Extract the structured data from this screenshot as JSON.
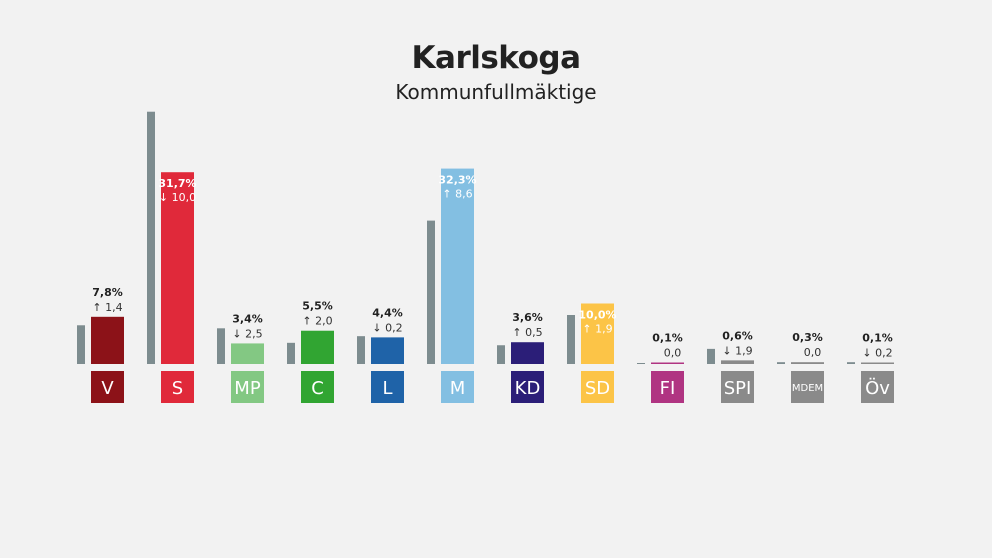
{
  "header": {
    "title": "Karlskoga",
    "subtitle": "Kommunfullmäktige"
  },
  "chart_data": {
    "type": "bar",
    "title": "Karlskoga",
    "subtitle": "Kommunfullmäktige",
    "categories": [
      "V",
      "S",
      "MP",
      "C",
      "L",
      "M",
      "KD",
      "SD",
      "FI",
      "SPI",
      "MDEM",
      "Öv"
    ],
    "series": [
      {
        "values": [
          6.4,
          41.7,
          5.9,
          3.5,
          4.6,
          23.7,
          3.1,
          8.1,
          0.1,
          2.5,
          0.3,
          0.3
        ]
      },
      {
        "values": [
          7.8,
          31.7,
          3.4,
          5.5,
          4.4,
          32.3,
          3.6,
          10.0,
          0.1,
          0.6,
          0.3,
          0.1
        ]
      }
    ],
    "value_labels": [
      "7,8%",
      "31,7%",
      "3,4%",
      "5,5%",
      "4,4%",
      "32,3%",
      "3,6%",
      "10,0%",
      "0,1%",
      "0,6%",
      "0,3%",
      "0,1%"
    ],
    "change_labels": [
      "1,4",
      "10,0",
      "2,5",
      "2,0",
      "0,2",
      "8,6",
      "0,5",
      "1,9",
      "0,0",
      "1,9",
      "0,0",
      "0,2"
    ],
    "change_direction": [
      "up",
      "down",
      "down",
      "up",
      "down",
      "up",
      "up",
      "up",
      "none",
      "down",
      "none",
      "down"
    ],
    "party_colors": [
      "#8c1218",
      "#e0293a",
      "#83c883",
      "#31a532",
      "#1f63a8",
      "#83bfe2",
      "#2b1e78",
      "#fcc447",
      "#b03482",
      "#8a8a8a",
      "#8a8a8a",
      "#8a8a8a"
    ],
    "previous_color": "#7d8c8f",
    "label_inside": [
      false,
      true,
      false,
      false,
      false,
      true,
      false,
      true,
      false,
      false,
      false,
      false
    ],
    "ylim": [
      0,
      42
    ],
    "grid": false,
    "legend": "none"
  }
}
